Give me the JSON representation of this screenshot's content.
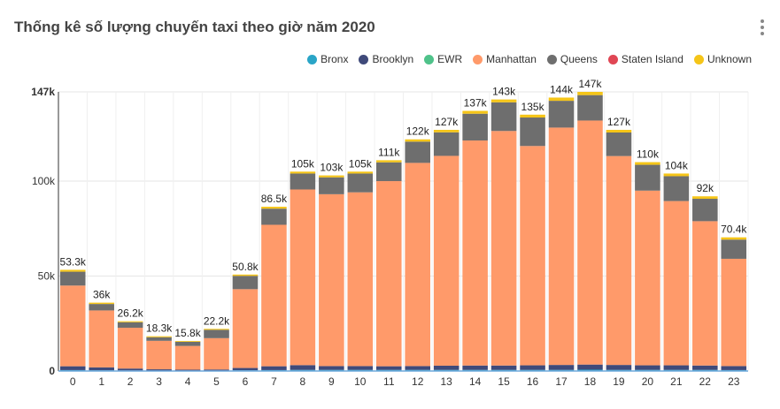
{
  "title": "Thống kê số lượng chuyến taxi theo giờ năm 2020",
  "legend": [
    {
      "name": "Bronx",
      "color": "#2aa5c7"
    },
    {
      "name": "Brooklyn",
      "color": "#3f4a7a"
    },
    {
      "name": "EWR",
      "color": "#4fc28a"
    },
    {
      "name": "Manhattan",
      "color": "#ff9a6a"
    },
    {
      "name": "Queens",
      "color": "#6e6e6e"
    },
    {
      "name": "Staten Island",
      "color": "#e04654"
    },
    {
      "name": "Unknown",
      "color": "#f5c518"
    }
  ],
  "chart_data": {
    "type": "bar",
    "stacked": true,
    "categories": [
      "0",
      "1",
      "2",
      "3",
      "4",
      "5",
      "6",
      "7",
      "8",
      "9",
      "10",
      "11",
      "12",
      "13",
      "14",
      "15",
      "16",
      "17",
      "18",
      "19",
      "20",
      "21",
      "22",
      "23"
    ],
    "ylim": [
      0,
      147000
    ],
    "yticks": [
      "0",
      "50k",
      "100k",
      "147k"
    ],
    "ytick_values": [
      0,
      50000,
      100000,
      147000
    ],
    "totals_labels": [
      "53.3k",
      "36k",
      "26.2k",
      "18.3k",
      "15.8k",
      "22.2k",
      "50.8k",
      "86.5k",
      "105k",
      "103k",
      "105k",
      "111k",
      "122k",
      "127k",
      "137k",
      "143k",
      "135k",
      "144k",
      "147k",
      "127k",
      "110k",
      "104k",
      "92k",
      "70.4k"
    ],
    "series": [
      {
        "name": "Bronx",
        "values": [
          500,
          400,
          300,
          200,
          200,
          200,
          400,
          500,
          600,
          600,
          600,
          600,
          600,
          600,
          600,
          600,
          600,
          600,
          700,
          600,
          600,
          600,
          600,
          500
        ]
      },
      {
        "name": "Brooklyn",
        "values": [
          2000,
          1500,
          1000,
          700,
          500,
          600,
          1200,
          2000,
          2500,
          2000,
          2000,
          1900,
          2000,
          2200,
          2300,
          2300,
          2400,
          2600,
          2700,
          2600,
          2400,
          2400,
          2300,
          2100
        ]
      },
      {
        "name": "EWR",
        "values": [
          0,
          0,
          0,
          0,
          0,
          0,
          0,
          0,
          0,
          0,
          0,
          0,
          0,
          0,
          0,
          0,
          0,
          0,
          0,
          0,
          0,
          0,
          0,
          0
        ]
      },
      {
        "name": "Manhattan",
        "values": [
          42500,
          30000,
          21500,
          15000,
          12500,
          16500,
          41500,
          74500,
          92500,
          90500,
          91500,
          97500,
          107000,
          110500,
          118500,
          123500,
          115500,
          125000,
          128500,
          110000,
          92000,
          86500,
          76000,
          56500
        ]
      },
      {
        "name": "Queens",
        "values": [
          7300,
          3400,
          2900,
          1900,
          2200,
          4400,
          7000,
          8500,
          8400,
          8900,
          9900,
          9900,
          11200,
          12400,
          14100,
          15100,
          15000,
          14100,
          13400,
          12400,
          13600,
          13100,
          11800,
          10100
        ]
      },
      {
        "name": "Staten Island",
        "values": [
          0,
          0,
          0,
          0,
          0,
          0,
          0,
          0,
          0,
          0,
          0,
          0,
          0,
          0,
          0,
          0,
          0,
          0,
          0,
          0,
          0,
          0,
          0,
          0
        ]
      },
      {
        "name": "Unknown",
        "values": [
          1000,
          700,
          500,
          500,
          400,
          500,
          700,
          1000,
          1000,
          1000,
          1000,
          1100,
          1200,
          1300,
          1500,
          1500,
          1500,
          1700,
          1700,
          1400,
          1400,
          1400,
          1300,
          1200
        ]
      }
    ]
  }
}
